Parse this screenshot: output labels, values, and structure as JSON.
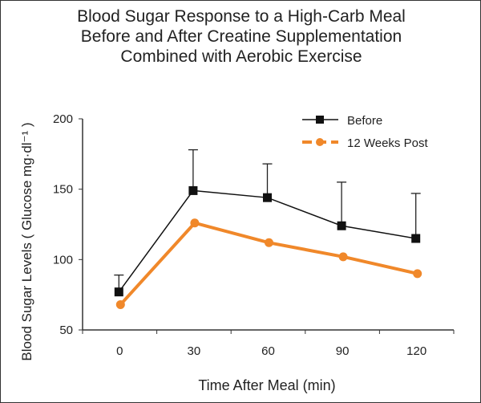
{
  "chart_data": {
    "type": "line",
    "title": [
      "Blood Sugar Response to a High-Carb Meal",
      "Before and After Creatine Supplementation",
      "Combined with Aerobic Exercise"
    ],
    "xlabel": "Time After Meal (min)",
    "ylabel": "Blood Sugar Levels ( Glucose mg·dl⁻¹ )",
    "x": [
      0,
      30,
      60,
      90,
      120
    ],
    "x_ticks": [
      "0",
      "30",
      "60",
      "90",
      "120"
    ],
    "ylim": [
      50,
      200
    ],
    "y_ticks": [
      "50",
      "100",
      "150",
      "200"
    ],
    "grid": false,
    "legend_position": "top-right",
    "series": [
      {
        "name": "Before",
        "color": "#111111",
        "marker": "square",
        "values": [
          77,
          149,
          144,
          124,
          115
        ],
        "error_upper": [
          89,
          178,
          168,
          155,
          147
        ]
      },
      {
        "name": "12 Weeks Post",
        "color": "#f0882a",
        "marker": "circle",
        "values": [
          68,
          126,
          112,
          102,
          90
        ]
      }
    ]
  }
}
